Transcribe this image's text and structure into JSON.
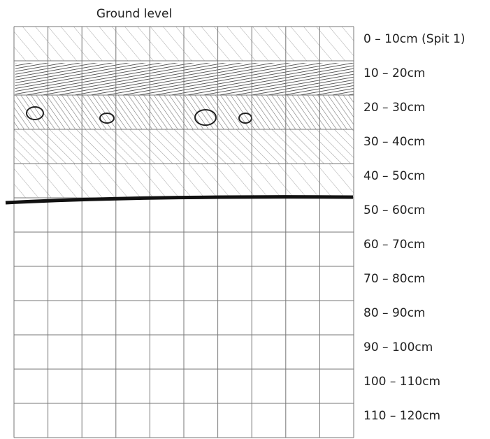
{
  "title": "Ground level",
  "layers": [
    "0 – 10cm (Spit 1)",
    "10 – 20cm",
    "20 – 30cm",
    "30 – 40cm",
    "40 – 50cm",
    "50 – 60cm",
    "60 – 70cm",
    "70 – 80cm",
    "80 – 90cm",
    "90 – 100cm",
    "100 – 110cm",
    "110 – 120cm"
  ]
}
